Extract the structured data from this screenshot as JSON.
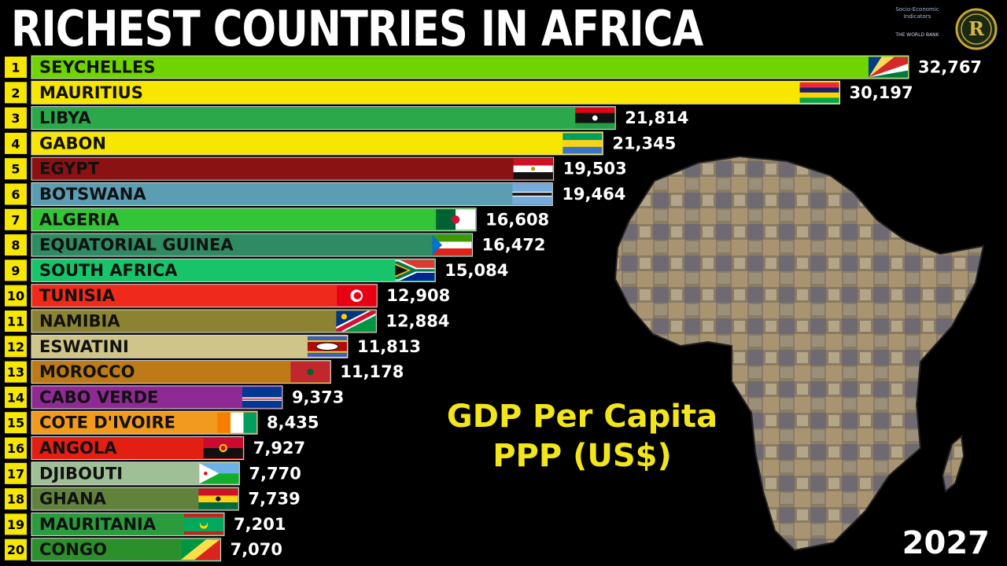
{
  "title": "RICHEST COUNTRIES IN AFRICA",
  "subtitle_line1": "GDP Per Capita",
  "subtitle_line2": "PPP (US$)",
  "year": "2027",
  "source": {
    "line1": "Socio-Economic",
    "line2": "Indicators",
    "line3": "THE WORLD BANK"
  },
  "logo_letter": "R",
  "icons": [
    "africa-map-icon",
    "world-bank-logo-icon",
    "channel-logo-icon"
  ],
  "chart_data": {
    "type": "bar",
    "orientation": "horizontal",
    "title": "RICHEST COUNTRIES IN AFRICA",
    "ylabel": "GDP Per Capita PPP (US$)",
    "categories": [
      "SEYCHELLES",
      "MAURITIUS",
      "LIBYA",
      "GABON",
      "EGYPT",
      "BOTSWANA",
      "ALGERIA",
      "EQUATORIAL GUINEA",
      "SOUTH AFRICA",
      "TUNISIA",
      "NAMIBIA",
      "ESWATINI",
      "MOROCCO",
      "CABO VERDE",
      "COTE D'IVOIRE",
      "ANGOLA",
      "DJIBOUTI",
      "GHANA",
      "MAURITANIA",
      "CONGO"
    ],
    "values": [
      32767,
      30197,
      21814,
      21345,
      19503,
      19464,
      16608,
      16472,
      15084,
      12908,
      12884,
      11813,
      11178,
      9373,
      8435,
      7927,
      7770,
      7739,
      7201,
      7070
    ],
    "value_labels": [
      "32,767",
      "30,197",
      "21,814",
      "21,345",
      "19,503",
      "19,464",
      "16,608",
      "16,472",
      "15,084",
      "12,908",
      "12,884",
      "11,813",
      "11,178",
      "9,373",
      "8,435",
      "7,927",
      "7,770",
      "7,739",
      "7,201",
      "7,070"
    ],
    "ranks": [
      "1",
      "2",
      "3",
      "4",
      "5",
      "6",
      "7",
      "8",
      "9",
      "10",
      "11",
      "12",
      "13",
      "14",
      "15",
      "16",
      "17",
      "18",
      "19",
      "20"
    ],
    "colors": [
      "#6fd400",
      "#f7e600",
      "#2aa84a",
      "#f7e600",
      "#8b1212",
      "#5b9db3",
      "#34c437",
      "#2e8b62",
      "#18c46a",
      "#ef2a1a",
      "#8c8332",
      "#cfc48a",
      "#bd7a16",
      "#8f2a94",
      "#f29a1e",
      "#e31e12",
      "#9fbf97",
      "#61823c",
      "#2b9b3e",
      "#2b8f2b"
    ],
    "flags": [
      "seychelles-flag",
      "mauritius-flag",
      "libya-flag",
      "gabon-flag",
      "egypt-flag",
      "botswana-flag",
      "algeria-flag",
      "equatorial-guinea-flag",
      "south-africa-flag",
      "tunisia-flag",
      "namibia-flag",
      "eswatini-flag",
      "morocco-flag",
      "cabo-verde-flag",
      "cote-divoire-flag",
      "angola-flag",
      "djibouti-flag",
      "ghana-flag",
      "mauritania-flag",
      "congo-flag"
    ],
    "xlim": [
      0,
      32767
    ],
    "grid": false,
    "legend": "none"
  }
}
